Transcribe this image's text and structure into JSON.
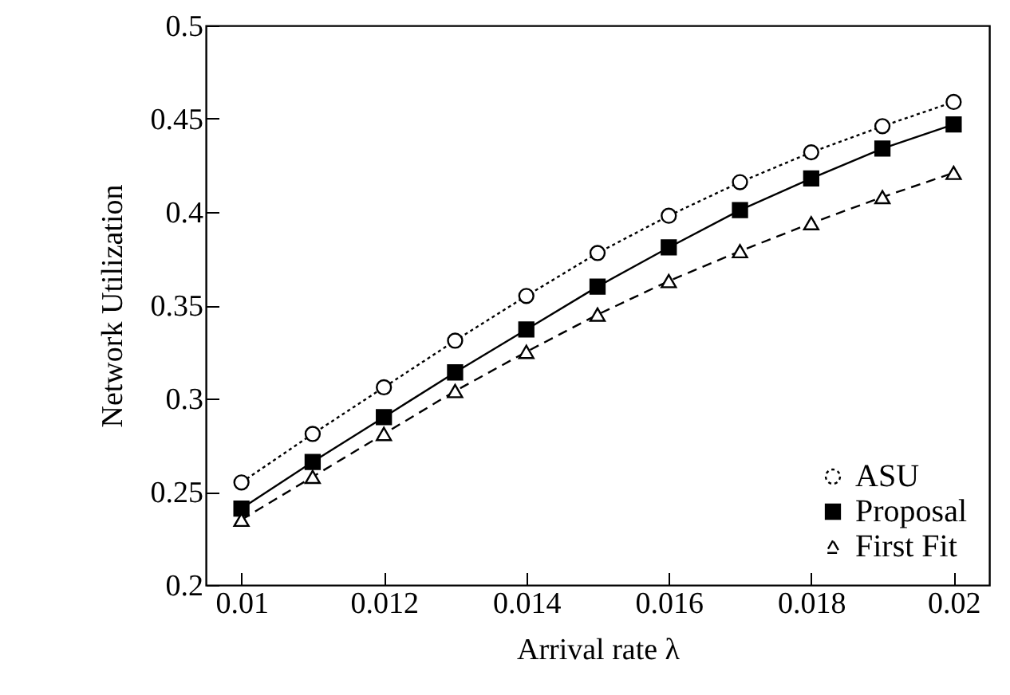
{
  "chart_data": {
    "type": "line",
    "xlabel": "Arrival rate λ",
    "ylabel": "Network Utilization",
    "x": [
      0.01,
      0.011,
      0.012,
      0.013,
      0.014,
      0.015,
      0.016,
      0.017,
      0.018,
      0.019,
      0.02
    ],
    "series": [
      {
        "name": "ASU",
        "color": "#000000",
        "marker": "circle",
        "line_style": "dotted",
        "values": [
          0.255,
          0.281,
          0.306,
          0.331,
          0.355,
          0.378,
          0.398,
          0.416,
          0.432,
          0.446,
          0.459
        ]
      },
      {
        "name": "Proposal",
        "color": "#000000",
        "marker": "square",
        "line_style": "solid",
        "values": [
          0.241,
          0.266,
          0.29,
          0.314,
          0.337,
          0.36,
          0.381,
          0.401,
          0.418,
          0.434,
          0.447
        ]
      },
      {
        "name": "First Fit",
        "color": "#000000",
        "marker": "triangle",
        "line_style": "dashed",
        "values": [
          0.235,
          0.258,
          0.281,
          0.304,
          0.325,
          0.345,
          0.363,
          0.379,
          0.394,
          0.408,
          0.421
        ]
      }
    ],
    "xlim": [
      0.0095,
      0.0205
    ],
    "xticks": [
      0.01,
      0.012,
      0.014,
      0.016,
      0.018,
      0.02
    ],
    "ylim": [
      0.2,
      0.5
    ],
    "yticks": [
      0.2,
      0.25,
      0.3,
      0.35,
      0.4,
      0.45,
      0.5
    ],
    "grid": false,
    "legend": "bottom right"
  }
}
